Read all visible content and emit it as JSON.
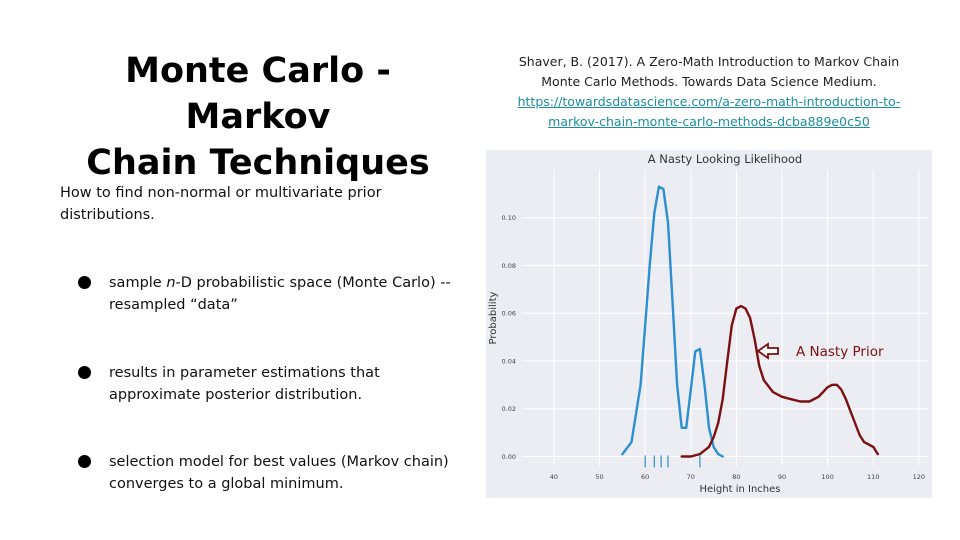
{
  "slide": {
    "title_line1": "Monte Carlo - Markov",
    "title_line2": "Chain Techniques",
    "citation": {
      "line1": "Shaver, B. (2017). A Zero-Math Introduction to Markov Chain",
      "line2": "Monte Carlo Methods. Towards Data Science Medium.",
      "link_line1": "https://towardsdatascience.com/a-zero-math-introduction-to-",
      "link_line2": "markov-chain-monte-carlo-methods-dcba889e0c50"
    },
    "intro": "How to find non-normal or multivariate prior distributions.",
    "bullets": [
      {
        "pre": "sample ",
        "em": "n",
        "post": "-D probabilistic space (Monte Carlo) -- resampled “data”"
      },
      {
        "pre": "results in parameter estimations that approximate posterior distribution.",
        "em": "",
        "post": ""
      },
      {
        "pre": "selection model for best values (Markov chain) converges to a global minimum.",
        "em": "",
        "post": ""
      }
    ]
  },
  "chart_data": {
    "type": "line",
    "title": "A Nasty Looking Likelihood",
    "xlabel": "Height in Inches",
    "ylabel": "Probability",
    "xlim": [
      33,
      122
    ],
    "ylim": [
      -0.004,
      0.12
    ],
    "xticks": [
      40,
      50,
      60,
      70,
      80,
      90,
      100,
      110,
      120
    ],
    "yticks": [
      0.0,
      0.02,
      0.04,
      0.06,
      0.08,
      0.1
    ],
    "ytick_labels": [
      "0.00",
      "0.02",
      "0.04",
      "0.06",
      "0.08",
      "0.10"
    ],
    "grid": true,
    "colors": {
      "likelihood": "#2b8fd0",
      "prior": "#7a1010",
      "background": "#ececf3",
      "grid": "#ffffff"
    },
    "series": [
      {
        "role": "likelihood",
        "x": [
          55,
          57,
          59,
          60,
          61,
          62,
          63,
          64,
          65,
          66,
          67,
          68,
          69,
          70,
          71,
          72,
          73,
          74,
          75,
          76,
          77
        ],
        "y": [
          0.001,
          0.006,
          0.03,
          0.055,
          0.08,
          0.102,
          0.113,
          0.112,
          0.098,
          0.065,
          0.03,
          0.012,
          0.012,
          0.028,
          0.044,
          0.045,
          0.03,
          0.012,
          0.004,
          0.001,
          0.0
        ]
      },
      {
        "role": "prior",
        "annotation": "A Nasty Prior",
        "x": [
          68,
          70,
          72,
          74,
          75,
          76,
          77,
          78,
          79,
          80,
          81,
          82,
          83,
          84,
          85,
          86,
          88,
          90,
          92,
          94,
          96,
          98,
          99,
          100,
          101,
          102,
          103,
          104,
          105,
          106,
          107,
          108,
          109,
          110,
          111
        ],
        "y": [
          0.0,
          0.0,
          0.001,
          0.004,
          0.008,
          0.014,
          0.024,
          0.04,
          0.055,
          0.062,
          0.063,
          0.062,
          0.058,
          0.049,
          0.038,
          0.032,
          0.027,
          0.025,
          0.024,
          0.023,
          0.023,
          0.025,
          0.027,
          0.029,
          0.03,
          0.03,
          0.028,
          0.024,
          0.019,
          0.014,
          0.009,
          0.006,
          0.005,
          0.004,
          0.001
        ]
      }
    ],
    "rug": [
      60,
      62,
      63.5,
      65,
      72
    ]
  }
}
